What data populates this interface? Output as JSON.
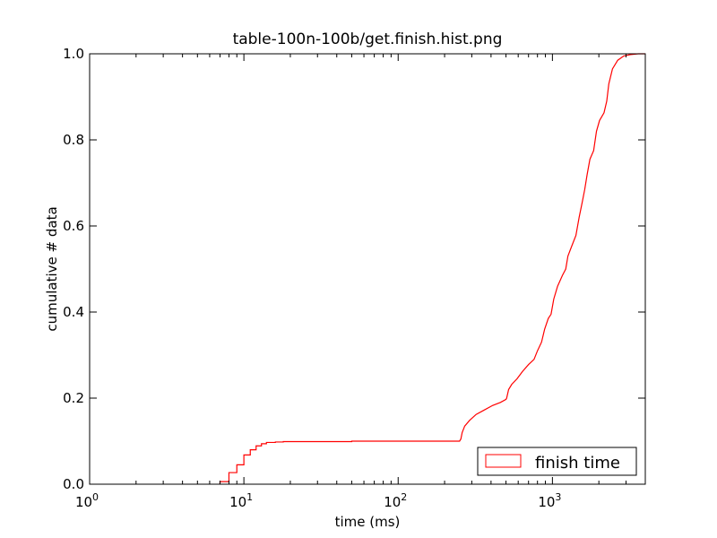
{
  "chart_data": {
    "type": "line",
    "title": "table-100n-100b/get.finish.hist.png",
    "xlabel": "time (ms)",
    "ylabel": "cumulative # data",
    "xscale": "log",
    "xlim": [
      1,
      4000
    ],
    "ylim": [
      0,
      1.0
    ],
    "grid": false,
    "legend_position": "bottom-right",
    "x_ticks": [
      {
        "value": 1,
        "base": "10",
        "exp": "0"
      },
      {
        "value": 10,
        "base": "10",
        "exp": "1"
      },
      {
        "value": 100,
        "base": "10",
        "exp": "2"
      },
      {
        "value": 1000,
        "base": "10",
        "exp": "3"
      }
    ],
    "y_ticks": [
      {
        "value": 0,
        "label": "0.0"
      },
      {
        "value": 0.2,
        "label": "0.2"
      },
      {
        "value": 0.4,
        "label": "0.4"
      },
      {
        "value": 0.6,
        "label": "0.6"
      },
      {
        "value": 0.8,
        "label": "0.8"
      },
      {
        "value": 1.0,
        "label": "1.0"
      }
    ],
    "series": [
      {
        "name": "finish time",
        "color": "#ff0000",
        "style": "step",
        "points": [
          [
            7,
            0.0
          ],
          [
            7,
            0.006
          ],
          [
            8,
            0.006
          ],
          [
            8,
            0.027
          ],
          [
            9,
            0.027
          ],
          [
            9,
            0.045
          ],
          [
            10,
            0.045
          ],
          [
            10,
            0.068
          ],
          [
            11,
            0.068
          ],
          [
            11,
            0.08
          ],
          [
            12,
            0.08
          ],
          [
            12,
            0.089
          ],
          [
            13,
            0.089
          ],
          [
            13,
            0.094
          ],
          [
            14,
            0.094
          ],
          [
            14,
            0.097
          ],
          [
            16,
            0.097
          ],
          [
            16,
            0.098
          ],
          [
            18,
            0.098
          ],
          [
            18,
            0.099
          ],
          [
            50,
            0.099
          ],
          [
            50,
            0.1
          ],
          [
            250,
            0.1
          ],
          [
            255,
            0.105
          ],
          [
            260,
            0.12
          ],
          [
            270,
            0.135
          ],
          [
            290,
            0.148
          ],
          [
            320,
            0.162
          ],
          [
            360,
            0.172
          ],
          [
            410,
            0.183
          ],
          [
            460,
            0.19
          ],
          [
            500,
            0.197
          ],
          [
            505,
            0.2
          ],
          [
            520,
            0.22
          ],
          [
            545,
            0.232
          ],
          [
            590,
            0.245
          ],
          [
            640,
            0.262
          ],
          [
            700,
            0.278
          ],
          [
            760,
            0.29
          ],
          [
            800,
            0.31
          ],
          [
            850,
            0.33
          ],
          [
            890,
            0.36
          ],
          [
            940,
            0.385
          ],
          [
            980,
            0.395
          ],
          [
            1020,
            0.43
          ],
          [
            1080,
            0.46
          ],
          [
            1160,
            0.485
          ],
          [
            1220,
            0.5
          ],
          [
            1260,
            0.53
          ],
          [
            1340,
            0.555
          ],
          [
            1420,
            0.578
          ],
          [
            1490,
            0.62
          ],
          [
            1560,
            0.655
          ],
          [
            1620,
            0.685
          ],
          [
            1680,
            0.72
          ],
          [
            1750,
            0.755
          ],
          [
            1850,
            0.775
          ],
          [
            1930,
            0.82
          ],
          [
            2020,
            0.845
          ],
          [
            2160,
            0.863
          ],
          [
            2250,
            0.89
          ],
          [
            2320,
            0.93
          ],
          [
            2450,
            0.965
          ],
          [
            2650,
            0.985
          ],
          [
            2900,
            0.995
          ],
          [
            3200,
            0.998
          ],
          [
            3600,
            1.0
          ],
          [
            4000,
            1.0
          ]
        ]
      }
    ]
  }
}
